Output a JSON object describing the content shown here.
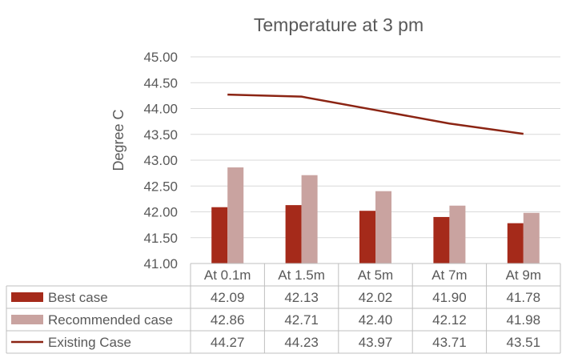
{
  "chart_data": {
    "type": "bar",
    "title": "Temperature at 3 pm",
    "ylabel": "Degree C",
    "xlabel": "",
    "ylim": [
      41.0,
      45.0
    ],
    "yticks": [
      "45.00",
      "44.50",
      "44.00",
      "43.50",
      "43.00",
      "42.50",
      "42.00",
      "41.50",
      "41.00"
    ],
    "categories": [
      "At 0.1m",
      "At 1.5m",
      "At 5m",
      "At 7m",
      "At 9m"
    ],
    "grid": true,
    "legend": "data-table-bottom",
    "series": [
      {
        "name": "Best case",
        "type": "bar",
        "color": "#a52a1a",
        "values": [
          42.09,
          42.13,
          42.02,
          41.9,
          41.78
        ],
        "labels": [
          "42.09",
          "42.13",
          "42.02",
          "41.90",
          "41.78"
        ]
      },
      {
        "name": "Recommended case",
        "type": "bar",
        "color": "#c9a3a0",
        "values": [
          42.86,
          42.71,
          42.4,
          42.12,
          41.98
        ],
        "labels": [
          "42.86",
          "42.71",
          "42.40",
          "42.12",
          "41.98"
        ]
      },
      {
        "name": "Existing Case",
        "type": "line",
        "color": "#8b2413",
        "values": [
          44.27,
          44.23,
          43.97,
          43.71,
          43.51
        ],
        "labels": [
          "44.27",
          "44.23",
          "43.97",
          "43.71",
          "43.51"
        ]
      }
    ]
  }
}
